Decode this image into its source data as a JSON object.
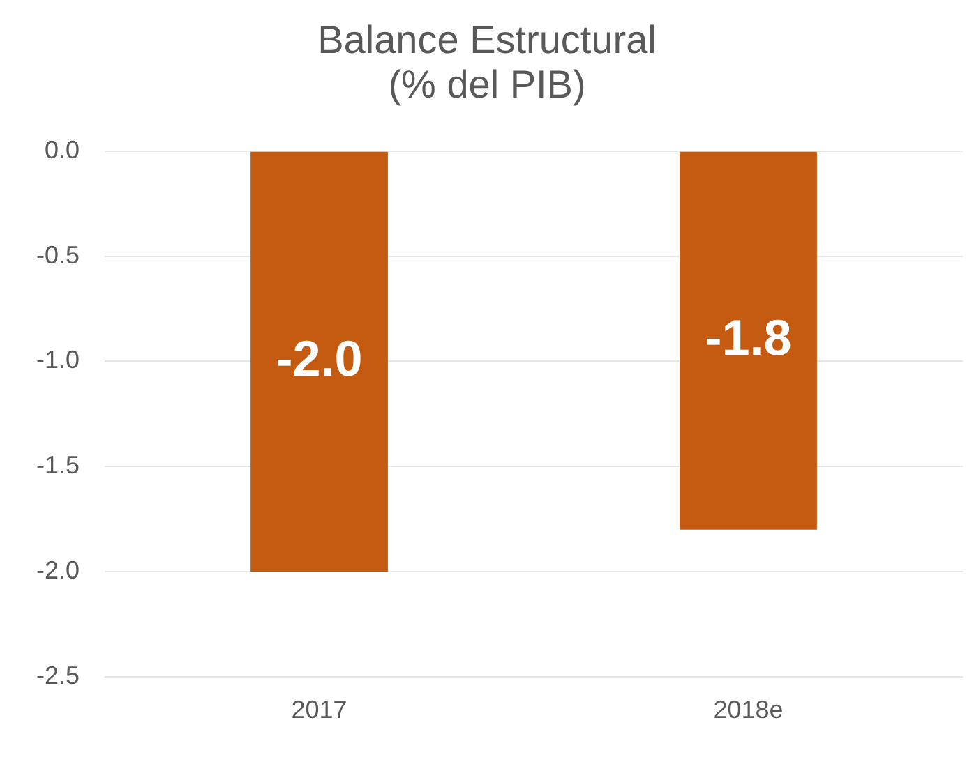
{
  "chart_data": {
    "type": "bar",
    "title": "Balance Estructural\n(% del PIB)",
    "categories": [
      "2017",
      "2018e"
    ],
    "values": [
      -2.0,
      -1.8
    ],
    "value_labels": [
      "-2.0",
      "-1.8"
    ],
    "color": "#c55a11",
    "ylim": [
      -2.5,
      0
    ],
    "yticks": [
      {
        "value": 0,
        "label": "0.0"
      },
      {
        "value": -0.5,
        "label": "-0.5"
      },
      {
        "value": -1,
        "label": "-1.0"
      },
      {
        "value": -1.5,
        "label": "-1.5"
      },
      {
        "value": -2,
        "label": "-2.0"
      },
      {
        "value": -2.5,
        "label": "-2.5"
      }
    ],
    "grid": "y",
    "legend": false
  }
}
